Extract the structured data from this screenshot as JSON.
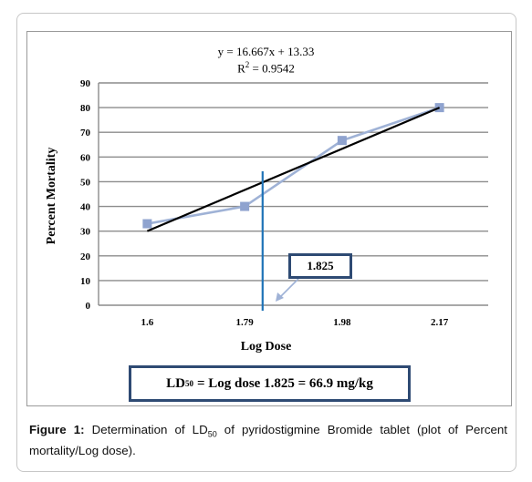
{
  "equation": {
    "line1": "y = 16.667x + 13.33",
    "r2_prefix": "R",
    "r2_sup": "2",
    "r2_suffix": " = 0.9542"
  },
  "callout": {
    "value": "1.825"
  },
  "ld_box": {
    "prefix": "LD",
    "sub": "50",
    "text": "=  Log dose 1.825 = 66.9 mg/kg"
  },
  "caption": {
    "label": "Figure 1:",
    "text_a": " Determination of LD",
    "sub": "50",
    "text_b": " of pyridostigmine Bromide tablet (plot of Percent mortality/Log dose)."
  },
  "colors": {
    "series": "#9fb2d6",
    "marker": "#8fa3cf",
    "trendline": "#000000",
    "vline": "#1f73b7",
    "box_border": "#2e4a73",
    "grid": "#8c8c8c"
  },
  "chart_data": {
    "type": "line",
    "xlabel": "Log Dose",
    "ylabel": "Percent Mortality",
    "categories": [
      "1.6",
      "1.79",
      "1.98",
      "2.17"
    ],
    "series": [
      {
        "values": [
          33,
          40,
          66.7,
          80
        ]
      }
    ],
    "trendline": {
      "equation": "y = 16.667x + 13.33",
      "r2": 0.9542,
      "from": 30,
      "to": 80
    },
    "vertical_marker": {
      "x": 1.825,
      "label": "1.825"
    },
    "ylim": [
      0,
      90
    ],
    "yticks": [
      0,
      10,
      20,
      30,
      40,
      50,
      60,
      70,
      80,
      90
    ],
    "grid": "horizontal",
    "legend": "none"
  }
}
